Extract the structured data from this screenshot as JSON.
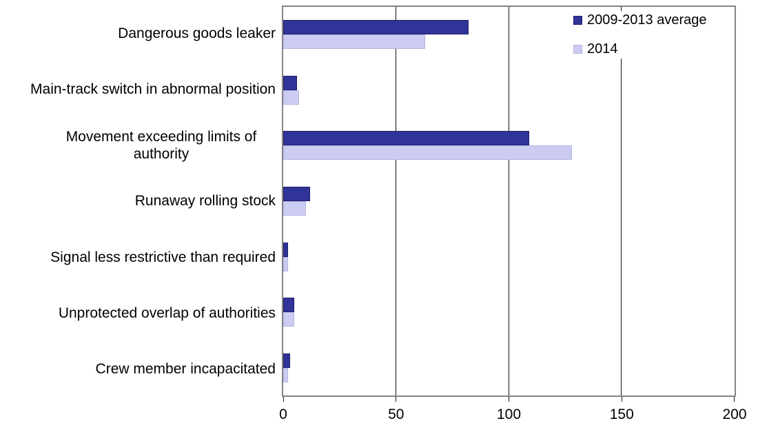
{
  "chart_data": {
    "type": "bar",
    "orientation": "horizontal",
    "categories": [
      "Dangerous goods leaker",
      "Main-track switch in abnormal position",
      "Movement exceeding limits of authority",
      "Runaway rolling stock",
      "Signal less restrictive than required",
      "Unprotected overlap of authorities",
      "Crew member incapacitated"
    ],
    "series": [
      {
        "name": "2009-2013 average",
        "color": "#303399",
        "border_color": "#1e2168",
        "values": [
          82,
          6,
          109,
          12,
          2,
          5,
          3
        ]
      },
      {
        "name": "2014",
        "color": "#ccccf2",
        "border_color": "#b4b4e4",
        "values": [
          63,
          7,
          128,
          10,
          2,
          5,
          2
        ]
      }
    ],
    "title": "",
    "xlabel": "",
    "ylabel": "",
    "xlim": [
      0,
      200
    ],
    "x_ticks": [
      0,
      50,
      100,
      150,
      200
    ],
    "grid": true,
    "legend_position": "top-right",
    "wrapped_category_index": 2
  },
  "colors": {
    "plot_border": "#848484",
    "gridline": "#111111",
    "text": "#000000",
    "background": "#ffffff"
  }
}
